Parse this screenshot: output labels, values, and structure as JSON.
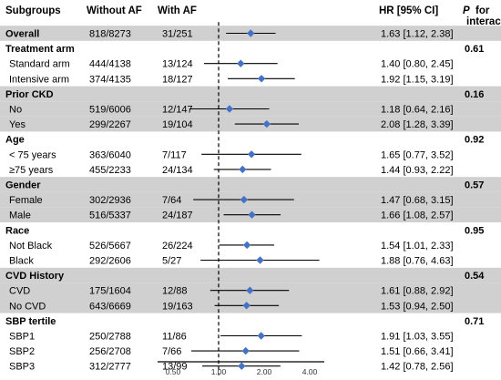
{
  "colors": {
    "shade": "#d0d0d0",
    "marker": "#4472c4",
    "line": "#000000"
  },
  "headers": {
    "subgroups": "Subgroups",
    "without_af": "Without AF",
    "with_af": "With AF",
    "hr": "HR [95% CI]",
    "p_label_1": "P",
    "p_label_2": "for",
    "p_label_3": "interaction"
  },
  "chart_data": {
    "type": "forest",
    "xscale": "log2",
    "xlim": [
      0.5,
      4.0
    ],
    "xticks": [
      0.5,
      1.0,
      2.0,
      4.0
    ],
    "xtick_labels": [
      "0.50",
      "1.00",
      "2.00",
      "4.00"
    ],
    "reference_line": 1.0,
    "rows": [
      {
        "label": "Overall",
        "without": "818/8273",
        "with": "31/251",
        "hr": 1.63,
        "lo": 1.12,
        "hi": 2.38,
        "hr_text": "1.63 [1.12, 2.38]",
        "p": "",
        "shaded": true,
        "bold": true,
        "header": false
      },
      {
        "label": "Treatment arm",
        "without": "",
        "with": "",
        "hr": null,
        "hr_text": "",
        "p": "0.61",
        "shaded": false,
        "bold": true,
        "header": true
      },
      {
        "label": "Standard arm",
        "without": "444/4138",
        "with": "13/124",
        "hr": 1.4,
        "lo": 0.8,
        "hi": 2.45,
        "hr_text": "1.40 [0.80, 2.45]",
        "p": "",
        "shaded": false,
        "bold": false,
        "header": false
      },
      {
        "label": "Intensive arm",
        "without": "374/4135",
        "with": "18/127",
        "hr": 1.92,
        "lo": 1.15,
        "hi": 3.19,
        "hr_text": "1.92 [1.15, 3.19]",
        "p": "",
        "shaded": false,
        "bold": false,
        "header": false
      },
      {
        "label": "Prior CKD",
        "without": "",
        "with": "",
        "hr": null,
        "hr_text": "",
        "p": "0.16",
        "shaded": true,
        "bold": true,
        "header": true
      },
      {
        "label": "No",
        "without": "519/6006",
        "with": "12/147",
        "hr": 1.18,
        "lo": 0.64,
        "hi": 2.16,
        "hr_text": "1.18 [0.64, 2.16]",
        "p": "",
        "shaded": true,
        "bold": false,
        "header": false
      },
      {
        "label": "Yes",
        "without": "299/2267",
        "with": "19/104",
        "hr": 2.08,
        "lo": 1.28,
        "hi": 3.39,
        "hr_text": "2.08 [1.28, 3.39]",
        "p": "",
        "shaded": true,
        "bold": false,
        "header": false
      },
      {
        "label": "Age",
        "without": "",
        "with": "",
        "hr": null,
        "hr_text": "",
        "p": "0.92",
        "shaded": false,
        "bold": true,
        "header": true
      },
      {
        "label": "< 75 years",
        "without": "363/6040",
        "with": "7/117",
        "hr": 1.65,
        "lo": 0.77,
        "hi": 3.52,
        "hr_text": "1.65 [0.77, 3.52]",
        "p": "",
        "shaded": false,
        "bold": false,
        "header": false
      },
      {
        "label": "≥75 years",
        "without": "455/2233",
        "with": "24/134",
        "hr": 1.44,
        "lo": 0.93,
        "hi": 2.22,
        "hr_text": "1.44 [0.93, 2.22]",
        "p": "",
        "shaded": false,
        "bold": false,
        "header": false
      },
      {
        "label": "Gender",
        "without": "",
        "with": "",
        "hr": null,
        "hr_text": "",
        "p": "0.57",
        "shaded": true,
        "bold": true,
        "header": true
      },
      {
        "label": "Female",
        "without": "302/2936",
        "with": "7/64",
        "hr": 1.47,
        "lo": 0.68,
        "hi": 3.15,
        "hr_text": "1.47 [0.68, 3.15]",
        "p": "",
        "shaded": true,
        "bold": false,
        "header": false
      },
      {
        "label": "Male",
        "without": "516/5337",
        "with": "24/187",
        "hr": 1.66,
        "lo": 1.08,
        "hi": 2.57,
        "hr_text": "1.66 [1.08, 2.57]",
        "p": "",
        "shaded": true,
        "bold": false,
        "header": false
      },
      {
        "label": "Race",
        "without": "",
        "with": "",
        "hr": null,
        "hr_text": "",
        "p": "0.95",
        "shaded": false,
        "bold": true,
        "header": true
      },
      {
        "label": "Not Black",
        "without": "526/5667",
        "with": "26/224",
        "hr": 1.54,
        "lo": 1.01,
        "hi": 2.33,
        "hr_text": "1.54 [1.01, 2.33]",
        "p": "",
        "shaded": false,
        "bold": false,
        "header": false
      },
      {
        "label": "Black",
        "without": "292/2606",
        "with": "5/27",
        "hr": 1.88,
        "lo": 0.76,
        "hi": 4.63,
        "hr_text": "1.88 [0.76, 4.63]",
        "p": "",
        "shaded": false,
        "bold": false,
        "header": false
      },
      {
        "label": "CVD History",
        "without": "",
        "with": "",
        "hr": null,
        "hr_text": "",
        "p": "0.54",
        "shaded": true,
        "bold": true,
        "header": true
      },
      {
        "label": "CVD",
        "without": "175/1604",
        "with": "12/88",
        "hr": 1.61,
        "lo": 0.88,
        "hi": 2.92,
        "hr_text": "1.61 [0.88, 2.92]",
        "p": "",
        "shaded": true,
        "bold": false,
        "header": false
      },
      {
        "label": "No CVD",
        "without": "643/6669",
        "with": "19/163",
        "hr": 1.53,
        "lo": 0.94,
        "hi": 2.5,
        "hr_text": "1.53 [0.94, 2.50]",
        "p": "",
        "shaded": true,
        "bold": false,
        "header": false
      },
      {
        "label": "SBP tertile",
        "without": "",
        "with": "",
        "hr": null,
        "hr_text": "",
        "p": "0.71",
        "shaded": false,
        "bold": true,
        "header": true
      },
      {
        "label": "SBP1",
        "without": "250/2788",
        "with": "11/86",
        "hr": 1.91,
        "lo": 1.03,
        "hi": 3.55,
        "hr_text": "1.91 [1.03, 3.55]",
        "p": "",
        "shaded": false,
        "bold": false,
        "header": false
      },
      {
        "label": "SBP2",
        "without": "256/2708",
        "with": "7/66",
        "hr": 1.51,
        "lo": 0.66,
        "hi": 3.41,
        "hr_text": "1.51 [0.66, 3.41]",
        "p": "",
        "shaded": false,
        "bold": false,
        "header": false
      },
      {
        "label": "SBP3",
        "without": "312/2777",
        "with": "13/99",
        "hr": 1.42,
        "lo": 0.78,
        "hi": 2.56,
        "hr_text": "1.42 [0.78, 2.56]",
        "p": "",
        "shaded": false,
        "bold": false,
        "header": false
      }
    ]
  }
}
